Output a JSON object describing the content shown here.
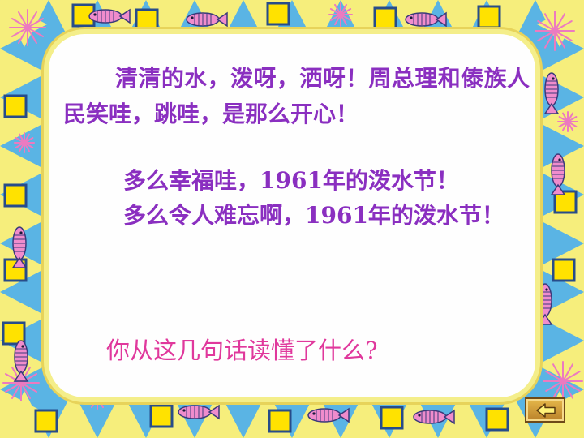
{
  "slide": {
    "paragraphs": [
      "清清的水，泼呀，洒呀！周总理和傣族人民笑哇，跳哇，是那么开心！",
      "多么幸福哇，1961年的泼水节！",
      "多么令人难忘啊，1961年的泼水节！"
    ],
    "question": "你从这几句话读懂了什么?"
  },
  "colors": {
    "frame_blue": "#5ab4e4",
    "triangle_yellow": "#f6ee7c",
    "body_text": "#8a2fc0",
    "question_text": "#e0389c"
  },
  "icons": {
    "frame_pattern": "fish-and-starburst-border",
    "back_button": "back-arrow-icon"
  }
}
